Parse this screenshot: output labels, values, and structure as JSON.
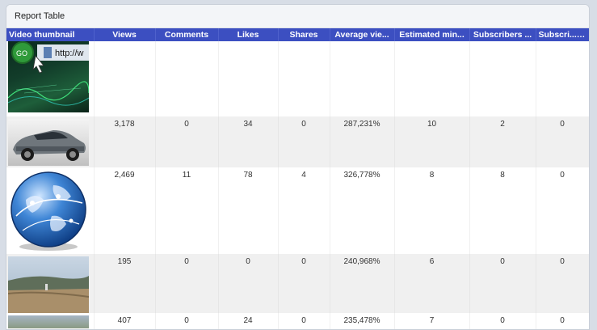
{
  "panel": {
    "title": "Report Table"
  },
  "columns": [
    {
      "label": "Video thumbnail"
    },
    {
      "label": "Views"
    },
    {
      "label": "Comments"
    },
    {
      "label": "Likes"
    },
    {
      "label": "Shares"
    },
    {
      "label": "Average vie..."
    },
    {
      "label": "Estimated min..."
    },
    {
      "label": "Subscribers ..."
    },
    {
      "label": "Subscri..."
    }
  ],
  "sort_icon": "▼",
  "rows": [
    {
      "thumb_text": "http://w",
      "thumb_btn": "GO",
      "views": "",
      "comments": "",
      "likes": "",
      "shares": "",
      "avg": "",
      "est": "",
      "subs": "",
      "subs2": ""
    },
    {
      "views": "3,178",
      "comments": "0",
      "likes": "34",
      "shares": "0",
      "avg": "287,231%",
      "est": "10",
      "subs": "2",
      "subs2": "0"
    },
    {
      "views": "2,469",
      "comments": "11",
      "likes": "78",
      "shares": "4",
      "avg": "326,778%",
      "est": "8",
      "subs": "8",
      "subs2": "0"
    },
    {
      "views": "195",
      "comments": "0",
      "likes": "0",
      "shares": "0",
      "avg": "240,968%",
      "est": "6",
      "subs": "0",
      "subs2": "0"
    },
    {
      "views": "407",
      "comments": "0",
      "likes": "24",
      "shares": "0",
      "avg": "235,478%",
      "est": "7",
      "subs": "0",
      "subs2": "0"
    }
  ]
}
